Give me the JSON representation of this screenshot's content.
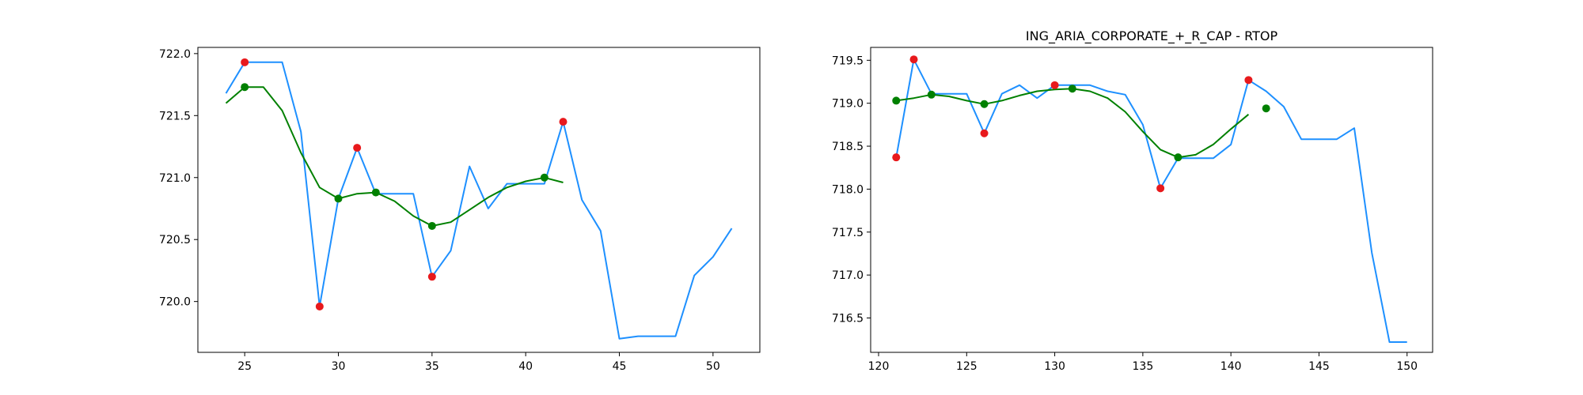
{
  "chart_data": [
    {
      "type": "line",
      "title": "",
      "xlabel": "",
      "ylabel": "",
      "xlim": [
        22.5,
        52.5
      ],
      "ylim": [
        719.59,
        722.05
      ],
      "xticks": [
        25,
        30,
        35,
        40,
        45,
        50
      ],
      "yticks": [
        720.0,
        720.5,
        721.0,
        721.5,
        722.0
      ],
      "ytick_labels": [
        "720.0",
        "720.5",
        "721.0",
        "721.5",
        "722.0"
      ],
      "grid": false,
      "colors": {
        "price": "#1e90ff",
        "smooth": "#008000",
        "red_points": "#e8191c",
        "green_points": "#008000"
      },
      "series": [
        {
          "kind": "line",
          "color_key": "price",
          "x": [
            24,
            25,
            26,
            27,
            28,
            29,
            30,
            31,
            32,
            33,
            34,
            35,
            36,
            37,
            38,
            39,
            40,
            41,
            42,
            43,
            44,
            45,
            46,
            47,
            48,
            49,
            50,
            51
          ],
          "y": [
            721.68,
            721.93,
            721.93,
            721.93,
            721.37,
            719.96,
            720.83,
            721.24,
            720.87,
            720.87,
            720.87,
            720.2,
            720.41,
            721.09,
            720.75,
            720.95,
            720.95,
            720.95,
            721.45,
            720.82,
            720.57,
            719.7,
            719.72,
            719.72,
            719.72,
            720.21,
            720.36,
            720.59
          ]
        },
        {
          "kind": "line",
          "color_key": "smooth",
          "x": [
            24,
            25,
            26,
            27,
            28,
            29,
            30,
            31,
            32,
            33,
            34,
            35,
            36,
            37,
            38,
            39,
            40,
            41,
            42
          ],
          "y": [
            721.6,
            721.73,
            721.73,
            721.54,
            721.2,
            720.92,
            720.83,
            720.87,
            720.88,
            720.81,
            720.69,
            720.61,
            720.64,
            720.74,
            720.84,
            720.92,
            720.97,
            721.0,
            720.96
          ]
        },
        {
          "kind": "scatter",
          "color_key": "red_points",
          "x": [
            25,
            29,
            31,
            35,
            42
          ],
          "y": [
            721.93,
            719.96,
            721.24,
            720.2,
            721.45
          ]
        },
        {
          "kind": "scatter",
          "color_key": "green_points",
          "x": [
            25,
            30,
            32,
            35,
            41
          ],
          "y": [
            721.73,
            720.83,
            720.88,
            720.61,
            721.0
          ]
        }
      ]
    },
    {
      "type": "line",
      "title": "ING_ARIA_CORPORATE_+_R_CAP - RTOP",
      "xlabel": "",
      "ylabel": "",
      "xlim": [
        119.55,
        151.45
      ],
      "ylim": [
        716.1,
        719.65
      ],
      "xticks": [
        120,
        125,
        130,
        135,
        140,
        145,
        150
      ],
      "yticks": [
        716.5,
        717.0,
        717.5,
        718.0,
        718.5,
        719.0,
        719.5
      ],
      "ytick_labels": [
        "716.5",
        "717.0",
        "717.5",
        "718.0",
        "718.5",
        "719.0",
        "719.5"
      ],
      "grid": false,
      "colors": {
        "price": "#1e90ff",
        "smooth": "#008000",
        "red_points": "#e8191c",
        "green_points": "#008000"
      },
      "series": [
        {
          "kind": "line",
          "color_key": "price",
          "x": [
            121,
            122,
            123,
            124,
            125,
            126,
            127,
            128,
            129,
            130,
            131,
            132,
            133,
            134,
            135,
            136,
            137,
            138,
            139,
            140,
            141,
            142,
            143,
            144,
            145,
            146,
            147,
            148,
            149,
            150
          ],
          "y": [
            718.37,
            719.51,
            719.11,
            719.11,
            719.11,
            718.65,
            719.11,
            719.21,
            719.06,
            719.21,
            719.21,
            719.21,
            719.14,
            719.1,
            718.75,
            718.01,
            718.36,
            718.36,
            718.36,
            718.52,
            719.27,
            719.14,
            718.96,
            718.58,
            718.58,
            718.58,
            718.71,
            717.26,
            716.22,
            716.22
          ]
        },
        {
          "kind": "line",
          "color_key": "smooth",
          "x": [
            121,
            122,
            123,
            124,
            125,
            126,
            127,
            128,
            129,
            130,
            131,
            132,
            133,
            134,
            135,
            136,
            137,
            138,
            139,
            140,
            141
          ],
          "y": [
            719.03,
            719.06,
            719.1,
            719.08,
            719.03,
            718.99,
            719.03,
            719.09,
            719.14,
            719.16,
            719.17,
            719.14,
            719.06,
            718.9,
            718.67,
            718.46,
            718.37,
            718.4,
            718.52,
            718.7,
            718.87
          ]
        },
        {
          "kind": "scatter",
          "color_key": "red_points",
          "x": [
            121,
            122,
            126,
            130,
            136,
            141
          ],
          "y": [
            718.37,
            719.51,
            718.65,
            719.21,
            718.01,
            719.27
          ]
        },
        {
          "kind": "scatter",
          "color_key": "green_points",
          "x": [
            121,
            123,
            126,
            131,
            137,
            142
          ],
          "y": [
            719.03,
            719.1,
            718.99,
            719.17,
            718.37,
            718.94
          ]
        }
      ]
    }
  ]
}
